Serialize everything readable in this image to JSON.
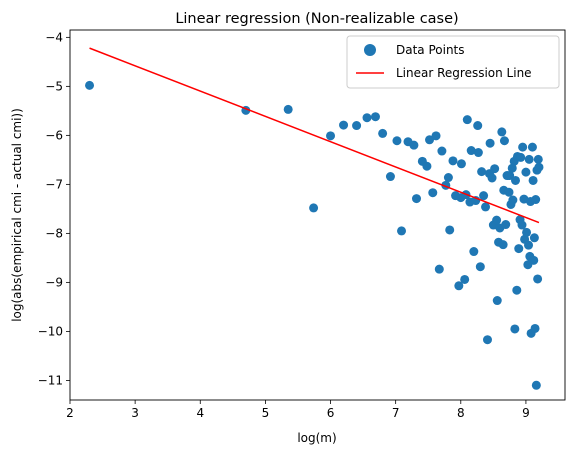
{
  "chart_data": {
    "type": "scatter",
    "title": "Linear regression (Non-realizable case)",
    "xlabel": "log(m)",
    "ylabel": "log(abs(empirical cmi - actual cmi))",
    "xlim": [
      2.0,
      9.6
    ],
    "ylim": [
      -11.4,
      -3.85
    ],
    "xticks": [
      2,
      3,
      4,
      5,
      6,
      7,
      8,
      9
    ],
    "yticks": [
      -11,
      -10,
      -9,
      -8,
      -7,
      -6,
      -5,
      -4
    ],
    "xtick_labels": [
      "2",
      "3",
      "4",
      "5",
      "6",
      "7",
      "8",
      "9"
    ],
    "ytick_labels": [
      "−11",
      "−10",
      "−9",
      "−8",
      "−7",
      "−6",
      "−5",
      "−4"
    ],
    "grid": false,
    "legend_position": "top-right",
    "series": [
      {
        "name": "Data Points",
        "kind": "scatter",
        "color": "#1f77b4",
        "points": [
          [
            2.3,
            -4.98
          ],
          [
            4.7,
            -5.49
          ],
          [
            5.35,
            -5.47
          ],
          [
            5.74,
            -7.48
          ],
          [
            6.0,
            -6.01
          ],
          [
            6.2,
            -5.79
          ],
          [
            6.4,
            -5.8
          ],
          [
            6.56,
            -5.64
          ],
          [
            6.69,
            -5.62
          ],
          [
            6.8,
            -5.96
          ],
          [
            6.92,
            -6.84
          ],
          [
            7.02,
            -6.11
          ],
          [
            7.09,
            -7.95
          ],
          [
            7.19,
            -6.13
          ],
          [
            7.28,
            -6.2
          ],
          [
            7.32,
            -7.29
          ],
          [
            7.41,
            -6.53
          ],
          [
            7.48,
            -6.63
          ],
          [
            7.52,
            -6.09
          ],
          [
            7.57,
            -7.17
          ],
          [
            7.62,
            -6.01
          ],
          [
            7.67,
            -8.73
          ],
          [
            7.71,
            -6.32
          ],
          [
            7.77,
            -7.02
          ],
          [
            7.81,
            -6.86
          ],
          [
            7.83,
            -7.93
          ],
          [
            7.88,
            -6.52
          ],
          [
            7.92,
            -7.23
          ],
          [
            7.97,
            -9.07
          ],
          [
            8.0,
            -7.27
          ],
          [
            8.01,
            -6.58
          ],
          [
            8.06,
            -8.94
          ],
          [
            8.08,
            -7.21
          ],
          [
            8.1,
            -5.68
          ],
          [
            8.14,
            -7.36
          ],
          [
            8.16,
            -6.31
          ],
          [
            8.2,
            -8.37
          ],
          [
            8.23,
            -7.33
          ],
          [
            8.26,
            -5.8
          ],
          [
            8.27,
            -6.35
          ],
          [
            8.3,
            -8.68
          ],
          [
            8.32,
            -6.74
          ],
          [
            8.35,
            -7.23
          ],
          [
            8.38,
            -7.46
          ],
          [
            8.41,
            -10.17
          ],
          [
            8.44,
            -6.78
          ],
          [
            8.45,
            -6.16
          ],
          [
            8.48,
            -6.87
          ],
          [
            8.5,
            -7.83
          ],
          [
            8.52,
            -6.68
          ],
          [
            8.55,
            -7.73
          ],
          [
            8.56,
            -9.37
          ],
          [
            8.58,
            -8.18
          ],
          [
            8.6,
            -7.89
          ],
          [
            8.63,
            -5.93
          ],
          [
            8.65,
            -8.23
          ],
          [
            8.66,
            -7.12
          ],
          [
            8.67,
            -6.11
          ],
          [
            8.69,
            -7.82
          ],
          [
            8.71,
            -6.82
          ],
          [
            8.74,
            -7.16
          ],
          [
            8.75,
            -6.82
          ],
          [
            8.77,
            -7.41
          ],
          [
            8.79,
            -6.67
          ],
          [
            8.8,
            -7.32
          ],
          [
            8.82,
            -6.53
          ],
          [
            8.83,
            -9.95
          ],
          [
            8.84,
            -6.92
          ],
          [
            8.86,
            -9.16
          ],
          [
            8.87,
            -6.43
          ],
          [
            8.89,
            -8.31
          ],
          [
            8.91,
            -7.72
          ],
          [
            8.92,
            -6.45
          ],
          [
            8.94,
            -7.83
          ],
          [
            8.95,
            -6.24
          ],
          [
            8.97,
            -7.3
          ],
          [
            8.98,
            -8.12
          ],
          [
            9.0,
            -6.75
          ],
          [
            9.01,
            -7.98
          ],
          [
            9.03,
            -8.64
          ],
          [
            9.04,
            -8.24
          ],
          [
            9.05,
            -6.49
          ],
          [
            9.06,
            -8.47
          ],
          [
            9.07,
            -7.35
          ],
          [
            9.08,
            -10.04
          ],
          [
            9.1,
            -6.24
          ],
          [
            9.11,
            -6.92
          ],
          [
            9.12,
            -8.55
          ],
          [
            9.13,
            -8.09
          ],
          [
            9.14,
            -9.94
          ],
          [
            9.15,
            -7.31
          ],
          [
            9.16,
            -11.1
          ],
          [
            9.17,
            -6.71
          ],
          [
            9.18,
            -8.93
          ],
          [
            9.19,
            -6.49
          ],
          [
            9.2,
            -6.65
          ]
        ]
      },
      {
        "name": "Linear Regression Line",
        "kind": "line",
        "color": "#ff0000",
        "x": [
          2.3,
          9.2
        ],
        "y": [
          -4.22,
          -7.78
        ]
      }
    ]
  }
}
